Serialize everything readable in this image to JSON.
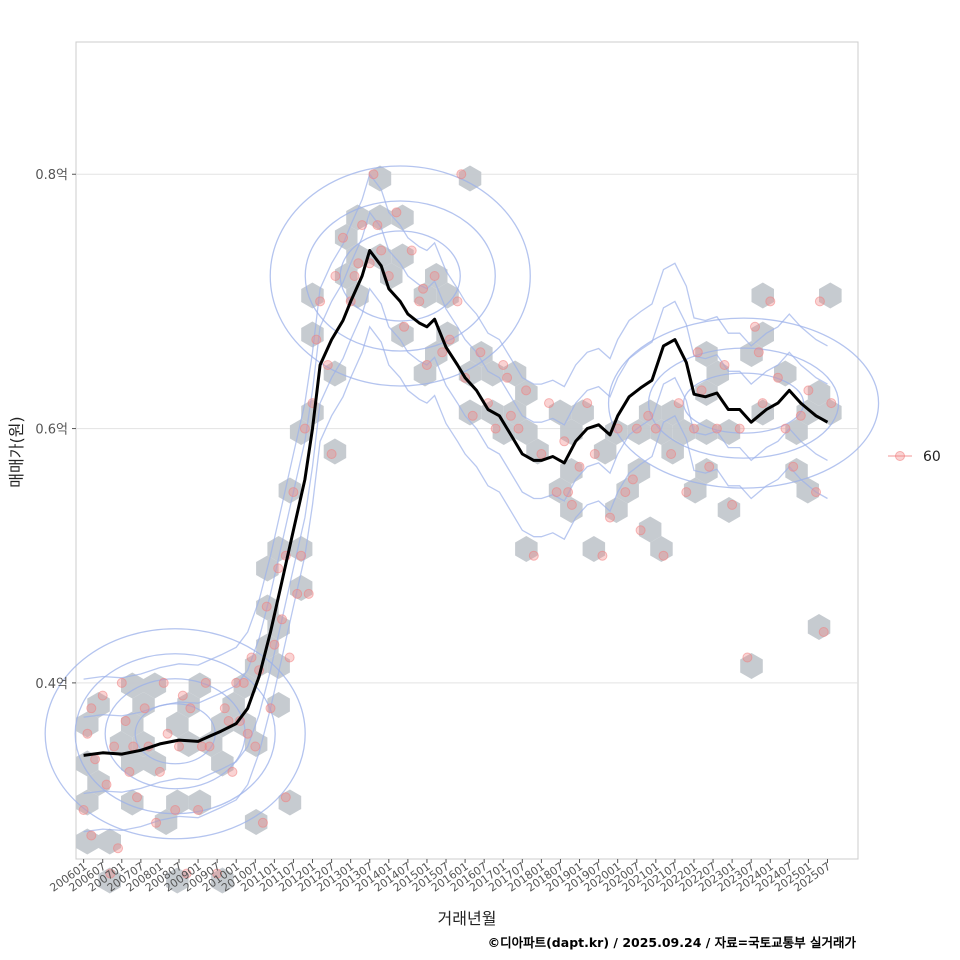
{
  "chart_data": {
    "type": "scatter",
    "title": "",
    "xlabel": "거래년월",
    "ylabel": "매매가(원)",
    "caption": "©디아파트(dapt.kr) / 2025.09.24 / 자료=국토교통부 실거래가",
    "x_tick_labels": [
      "200601",
      "200607",
      "200701",
      "200707",
      "200801",
      "200807",
      "200901",
      "200907",
      "201001",
      "201007",
      "201101",
      "201107",
      "201201",
      "201207",
      "201301",
      "201307",
      "201401",
      "201407",
      "201501",
      "201507",
      "201601",
      "201607",
      "201701",
      "201707",
      "201801",
      "201807",
      "201901",
      "201907",
      "202001",
      "202007",
      "202101",
      "202107",
      "202201",
      "202207",
      "202301",
      "202307",
      "202401",
      "202407",
      "202501",
      "202507"
    ],
    "y_ticks": [
      0.4,
      0.6,
      0.8
    ],
    "y_tick_labels": [
      "0.4억",
      "0.6억",
      "0.8억"
    ],
    "xlim": [
      2005.8,
      2026.3
    ],
    "ylim": [
      0.2615,
      0.904
    ],
    "grid": true,
    "legend": {
      "position": "right",
      "entries": [
        {
          "label": "60",
          "color": "#F08080"
        }
      ]
    },
    "series": [
      {
        "name": "moving-average",
        "style": "line",
        "color": "#000000",
        "x": [
          2006.0,
          2006.5,
          2007.0,
          2007.5,
          2008.0,
          2008.5,
          2009.0,
          2009.3,
          2009.6,
          2010.0,
          2010.3,
          2010.6,
          2010.9,
          2011.2,
          2011.5,
          2011.8,
          2012.0,
          2012.2,
          2012.5,
          2012.8,
          2013.0,
          2013.3,
          2013.5,
          2013.8,
          2014.0,
          2014.3,
          2014.5,
          2014.8,
          2015.0,
          2015.2,
          2015.5,
          2015.8,
          2016.0,
          2016.3,
          2016.6,
          2016.9,
          2017.2,
          2017.5,
          2017.8,
          2018.0,
          2018.3,
          2018.6,
          2018.9,
          2019.2,
          2019.5,
          2019.8,
          2020.0,
          2020.3,
          2020.6,
          2020.9,
          2021.2,
          2021.5,
          2021.8,
          2022.0,
          2022.3,
          2022.6,
          2022.9,
          2023.2,
          2023.5,
          2023.7,
          2023.9,
          2024.2,
          2024.5,
          2024.8,
          2025.0,
          2025.2,
          2025.5
        ],
        "y": [
          0.343,
          0.345,
          0.344,
          0.347,
          0.352,
          0.355,
          0.354,
          0.358,
          0.362,
          0.368,
          0.38,
          0.405,
          0.44,
          0.48,
          0.52,
          0.56,
          0.6,
          0.65,
          0.67,
          0.685,
          0.7,
          0.72,
          0.74,
          0.728,
          0.71,
          0.7,
          0.69,
          0.683,
          0.68,
          0.686,
          0.664,
          0.65,
          0.64,
          0.63,
          0.615,
          0.61,
          0.595,
          0.58,
          0.575,
          0.575,
          0.578,
          0.573,
          0.59,
          0.6,
          0.603,
          0.595,
          0.61,
          0.625,
          0.632,
          0.638,
          0.665,
          0.67,
          0.652,
          0.627,
          0.625,
          0.628,
          0.615,
          0.615,
          0.605,
          0.61,
          0.615,
          0.62,
          0.63,
          0.62,
          0.615,
          0.61,
          0.605
        ]
      },
      {
        "name": "60",
        "style": "points",
        "color": "#F08080",
        "x": [
          2006.0,
          2006.1,
          2006.2,
          2006.3,
          2006.5,
          2006.6,
          2006.7,
          2006.8,
          2007.0,
          2007.1,
          2007.2,
          2007.4,
          2007.6,
          2007.7,
          2007.9,
          2008.1,
          2008.2,
          2008.4,
          2008.5,
          2008.7,
          2008.8,
          2009.0,
          2009.2,
          2009.3,
          2009.5,
          2009.7,
          2009.9,
          2010.0,
          2010.1,
          2010.3,
          2010.4,
          2010.5,
          2010.6,
          2010.8,
          2010.9,
          2011.0,
          2011.1,
          2011.2,
          2011.3,
          2011.4,
          2011.5,
          2011.6,
          2011.7,
          2011.8,
          2011.9,
          2012.0,
          2012.1,
          2012.2,
          2012.4,
          2012.6,
          2012.8,
          2013.0,
          2013.2,
          2013.3,
          2013.5,
          2013.6,
          2013.8,
          2014.0,
          2014.2,
          2014.4,
          2014.6,
          2014.8,
          2015.0,
          2015.2,
          2015.4,
          2015.6,
          2015.8,
          2016.0,
          2016.2,
          2016.4,
          2016.6,
          2016.8,
          2017.0,
          2017.2,
          2017.4,
          2017.6,
          2017.8,
          2018.0,
          2018.2,
          2018.4,
          2018.6,
          2018.8,
          2019.0,
          2019.2,
          2019.4,
          2019.6,
          2019.8,
          2020.0,
          2020.2,
          2020.4,
          2020.6,
          2020.8,
          2021.0,
          2021.2,
          2021.4,
          2021.6,
          2021.8,
          2022.0,
          2022.2,
          2022.4,
          2022.6,
          2022.8,
          2023.0,
          2023.2,
          2023.4,
          2023.6,
          2023.8,
          2024.0,
          2024.2,
          2024.4,
          2024.6,
          2024.8,
          2025.0,
          2025.2,
          2025.4,
          2025.6,
          2006.2,
          2006.9,
          2007.3,
          2008.0,
          2008.6,
          2009.1,
          2009.8,
          2010.2,
          2010.7,
          2011.3,
          2012.5,
          2013.1,
          2013.7,
          2014.9,
          2015.9,
          2017.1,
          2018.7,
          2020.5,
          2022.1,
          2023.7,
          2025.3
        ],
        "y": [
          0.3,
          0.36,
          0.38,
          0.34,
          0.39,
          0.32,
          0.25,
          0.35,
          0.4,
          0.37,
          0.33,
          0.31,
          0.38,
          0.35,
          0.29,
          0.4,
          0.36,
          0.3,
          0.35,
          0.25,
          0.38,
          0.3,
          0.4,
          0.35,
          0.25,
          0.38,
          0.33,
          0.4,
          0.37,
          0.36,
          0.42,
          0.35,
          0.41,
          0.46,
          0.38,
          0.43,
          0.49,
          0.45,
          0.5,
          0.42,
          0.55,
          0.47,
          0.5,
          0.6,
          0.47,
          0.62,
          0.67,
          0.7,
          0.65,
          0.72,
          0.75,
          0.7,
          0.73,
          0.76,
          0.73,
          0.8,
          0.74,
          0.72,
          0.77,
          0.68,
          0.74,
          0.7,
          0.65,
          0.72,
          0.66,
          0.67,
          0.7,
          0.64,
          0.61,
          0.66,
          0.62,
          0.6,
          0.65,
          0.61,
          0.6,
          0.63,
          0.5,
          0.58,
          0.62,
          0.55,
          0.59,
          0.54,
          0.57,
          0.62,
          0.58,
          0.5,
          0.53,
          0.6,
          0.55,
          0.56,
          0.52,
          0.61,
          0.6,
          0.5,
          0.58,
          0.62,
          0.55,
          0.6,
          0.63,
          0.57,
          0.6,
          0.65,
          0.54,
          0.6,
          0.42,
          0.68,
          0.62,
          0.7,
          0.64,
          0.6,
          0.57,
          0.61,
          0.63,
          0.55,
          0.44,
          0.62,
          0.28,
          0.27,
          0.35,
          0.33,
          0.39,
          0.35,
          0.37,
          0.4,
          0.29,
          0.31,
          0.58,
          0.72,
          0.76,
          0.71,
          0.8,
          0.64,
          0.55,
          0.6,
          0.66,
          0.66,
          0.7
        ]
      }
    ]
  }
}
